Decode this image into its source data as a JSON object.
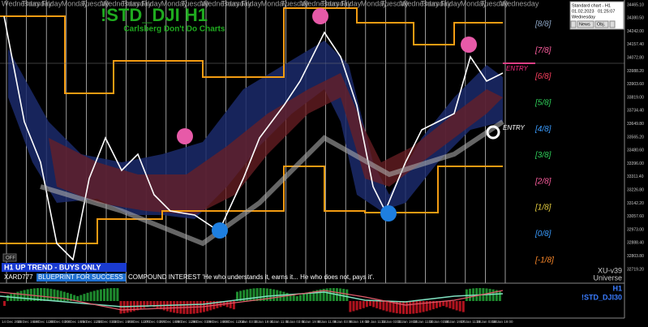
{
  "header": {
    "title": "!STD_DJI H1",
    "subtitle": "Carlsberg Don't Do Charts"
  },
  "day_labels": [
    "Wednesday",
    "Thursday",
    "Friday",
    "Monday",
    "Tuesday",
    "Wednesday",
    "Thursday",
    "Friday",
    "Monday",
    "Tuesday",
    "Wednesday",
    "Thursday",
    "Friday",
    "Monday",
    "Tuesday",
    "Wednesday",
    "Thursday",
    "Friday",
    "Monday",
    "Tuesday",
    "Wednesday",
    "Thursday",
    "Friday",
    "Monday",
    "Tuesday",
    "Wednesday"
  ],
  "info_box": {
    "title": "Standard chart - H1",
    "date": "01.02.2023",
    "time": "01:25:07",
    "weekday": "Wednesday",
    "buttons": [
      "News",
      "Obj."
    ]
  },
  "murrey_levels": [
    "[8/8]",
    "[7/8]",
    "[6/8]",
    "[5/8]",
    "[4/8]",
    "[3/8]",
    "[2/8]",
    "[1/8]",
    "[0/8]",
    "[-1/8]"
  ],
  "entry_labels": [
    "ENTRY",
    "ENTRY"
  ],
  "price_labels": [
    "34465.10",
    "34380.50",
    "34242.00",
    "34157.40",
    "34072.80",
    "33988.20",
    "33903.60",
    "33819.00",
    "33734.40",
    "33649.80",
    "33565.20",
    "33480.60",
    "33396.00",
    "33311.40",
    "33226.80",
    "33142.20",
    "33057.60",
    "32973.00",
    "32888.40",
    "32803.80",
    "32719.20"
  ],
  "status": {
    "trend": "H1 UP TREND - BUYS ONLY",
    "off_button": "OFF",
    "author": "XARD777",
    "blueprint": "BLUEPRINT FOR SUCCESS",
    "quote": "COMPOUND INTEREST  'He who understands it, earns it... He who does not, pays it'.",
    "version": "XU-v39",
    "universe": "Universe"
  },
  "indicator": {
    "timeframe": "H1",
    "symbol": "!STD_DJI30"
  },
  "date_labels": [
    "14 Dec 2022",
    "15 Dec 19:00",
    "19 Dec 11:00",
    "20 Dec 03:00",
    "20 Dec 19:00",
    "21 Dec 11:00",
    "22 Dec 03:00",
    "22 Dec 19:00",
    "23 Dec 11:00",
    "27 Dec 03:00",
    "27 Dec 19:00",
    "28 Dec 11:00",
    "29 Dec 03:00",
    "29 Dec 19:00",
    "30 Dec 11:00",
    "3 Jan 03:00",
    "3 Jan 19:00",
    "4 Jan 11:00",
    "5 Jan 03:00",
    "5 Jan 19:00",
    "6 Jan 11:00",
    "9 Jan 03:00",
    "9 Jan 19:00",
    "10 Jan 11:00",
    "11 Jan 03:00",
    "11 Jan 19:00",
    "12 Jan 11:00",
    "13 Jan 03:00",
    "16 Jan 19:00",
    "17 Jan 11:00",
    "18 Jan 03:00",
    "18 Jan 19:00"
  ]
}
